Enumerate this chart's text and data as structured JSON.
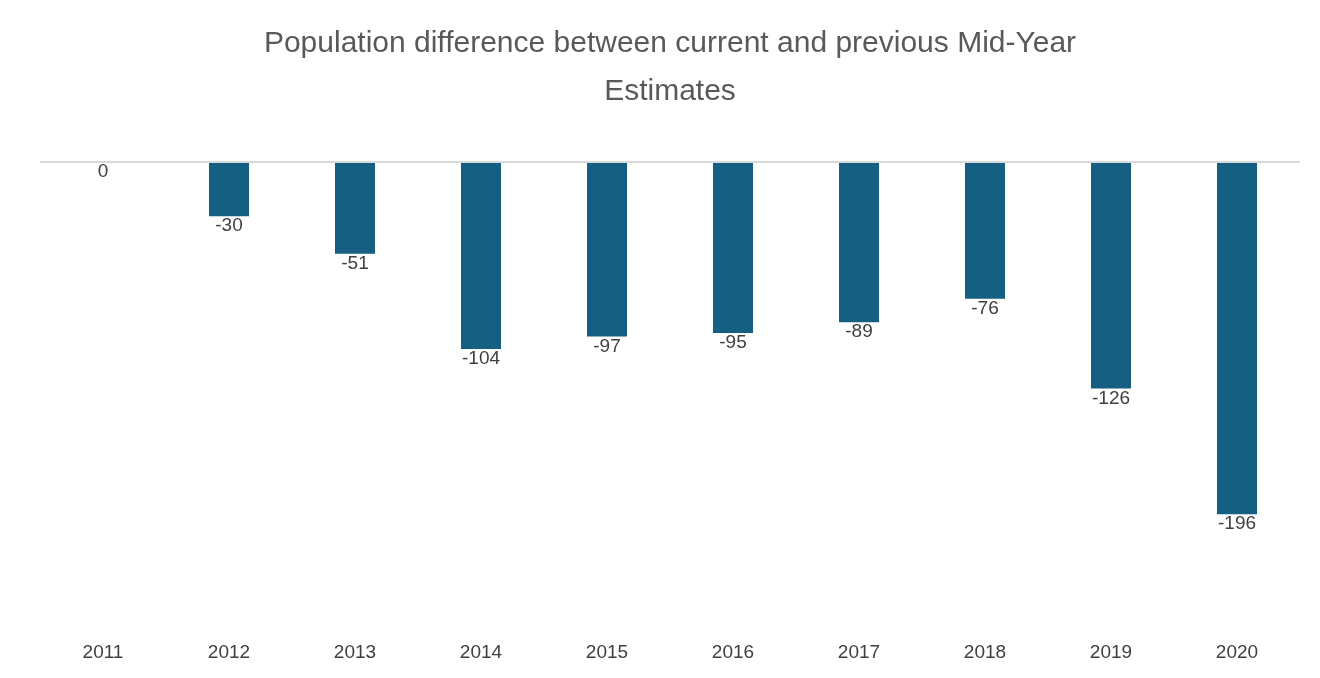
{
  "chart_data": {
    "type": "bar",
    "title": "Population difference between current and previous Mid-Year Estimates",
    "categories": [
      "2011",
      "2012",
      "2013",
      "2014",
      "2015",
      "2016",
      "2017",
      "2018",
      "2019",
      "2020"
    ],
    "values": [
      0,
      -30,
      -51,
      -104,
      -97,
      -95,
      -89,
      -76,
      -126,
      -196
    ],
    "color": "#156082",
    "tick_labels": "x",
    "data_labels": true,
    "grid": false
  }
}
